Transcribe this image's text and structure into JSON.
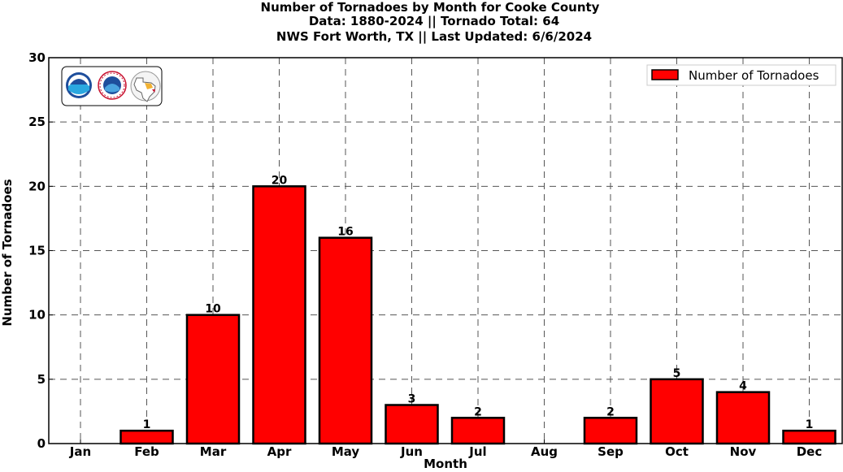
{
  "chart_data": {
    "type": "bar",
    "title_lines": [
      "Number of Tornadoes by Month for Cooke County",
      "Data: 1880-2024 || Tornado Total: 64",
      "NWS Fort Worth, TX || Last Updated: 6/6/2024"
    ],
    "xlabel": "Month",
    "ylabel": "Number of Tornadoes",
    "categories": [
      "Jan",
      "Feb",
      "Mar",
      "Apr",
      "May",
      "Jun",
      "Jul",
      "Aug",
      "Sep",
      "Oct",
      "Nov",
      "Dec"
    ],
    "series": [
      {
        "name": "Number of Tornadoes",
        "values": [
          0,
          1,
          10,
          20,
          16,
          3,
          2,
          0,
          2,
          5,
          4,
          1
        ],
        "data_labels": [
          "",
          "1",
          "10",
          "20",
          "16",
          "3",
          "2",
          "",
          "2",
          "5",
          "4",
          "1"
        ],
        "color": "#ff0000"
      }
    ],
    "ylim": [
      0,
      30
    ],
    "yticks": [
      "0",
      "5",
      "10",
      "15",
      "20",
      "25",
      "30"
    ],
    "grid": true,
    "legend_position": "top-right",
    "logos": [
      "noaa-logo",
      "national-weather-service-logo",
      "texas-map-logo"
    ]
  }
}
